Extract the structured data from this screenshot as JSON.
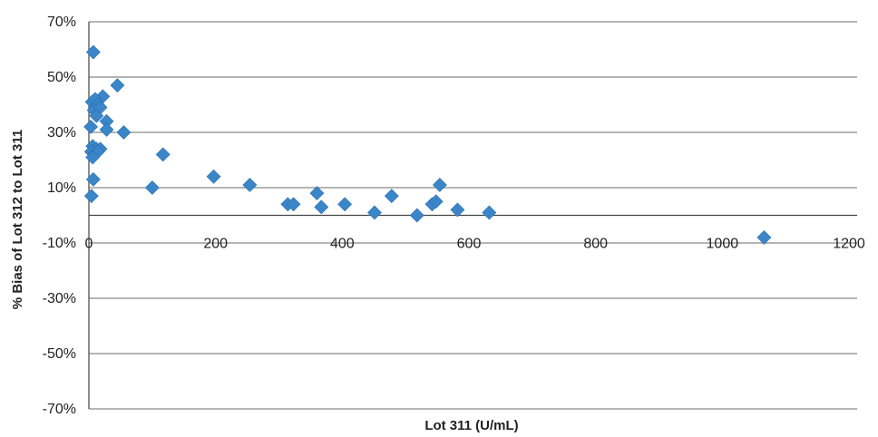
{
  "chart_data": {
    "type": "scatter",
    "title": "",
    "xlabel": "Lot 311 (U/mL)",
    "ylabel": "% Bias of Lot 312 to Lot 311",
    "xlim": [
      0,
      1200
    ],
    "ylim": [
      -70,
      70
    ],
    "x_ticks": [
      0,
      200,
      400,
      600,
      800,
      1000,
      1200
    ],
    "y_ticks": [
      70,
      50,
      30,
      10,
      -10,
      -30,
      -50,
      -70
    ],
    "y_tick_labels": [
      "70%",
      "50%",
      "30%",
      "10%",
      "-10%",
      "-30%",
      "-50%",
      "-70%"
    ],
    "grid": true,
    "legend": "none",
    "marker_color": "#3a86c8",
    "marker": "diamond",
    "points": [
      {
        "x": 7,
        "y": 59
      },
      {
        "x": 45,
        "y": 47
      },
      {
        "x": 22,
        "y": 43
      },
      {
        "x": 5,
        "y": 41
      },
      {
        "x": 10,
        "y": 42
      },
      {
        "x": 14,
        "y": 40
      },
      {
        "x": 8,
        "y": 38
      },
      {
        "x": 18,
        "y": 39
      },
      {
        "x": 12,
        "y": 36
      },
      {
        "x": 28,
        "y": 34
      },
      {
        "x": 3,
        "y": 32
      },
      {
        "x": 28,
        "y": 31
      },
      {
        "x": 55,
        "y": 30
      },
      {
        "x": 6,
        "y": 25
      },
      {
        "x": 12,
        "y": 24
      },
      {
        "x": 18,
        "y": 24
      },
      {
        "x": 4,
        "y": 23
      },
      {
        "x": 9,
        "y": 22
      },
      {
        "x": 14,
        "y": 23
      },
      {
        "x": 6,
        "y": 21
      },
      {
        "x": 117,
        "y": 22
      },
      {
        "x": 7,
        "y": 13
      },
      {
        "x": 100,
        "y": 10
      },
      {
        "x": 197,
        "y": 14
      },
      {
        "x": 254,
        "y": 11
      },
      {
        "x": 4,
        "y": 7
      },
      {
        "x": 314,
        "y": 4
      },
      {
        "x": 323,
        "y": 4
      },
      {
        "x": 360,
        "y": 8
      },
      {
        "x": 367,
        "y": 3
      },
      {
        "x": 404,
        "y": 4
      },
      {
        "x": 451,
        "y": 1
      },
      {
        "x": 478,
        "y": 7
      },
      {
        "x": 518,
        "y": 0
      },
      {
        "x": 542,
        "y": 4
      },
      {
        "x": 548,
        "y": 5
      },
      {
        "x": 554,
        "y": 11
      },
      {
        "x": 582,
        "y": 2
      },
      {
        "x": 632,
        "y": 1
      },
      {
        "x": 1066,
        "y": -8
      }
    ]
  }
}
